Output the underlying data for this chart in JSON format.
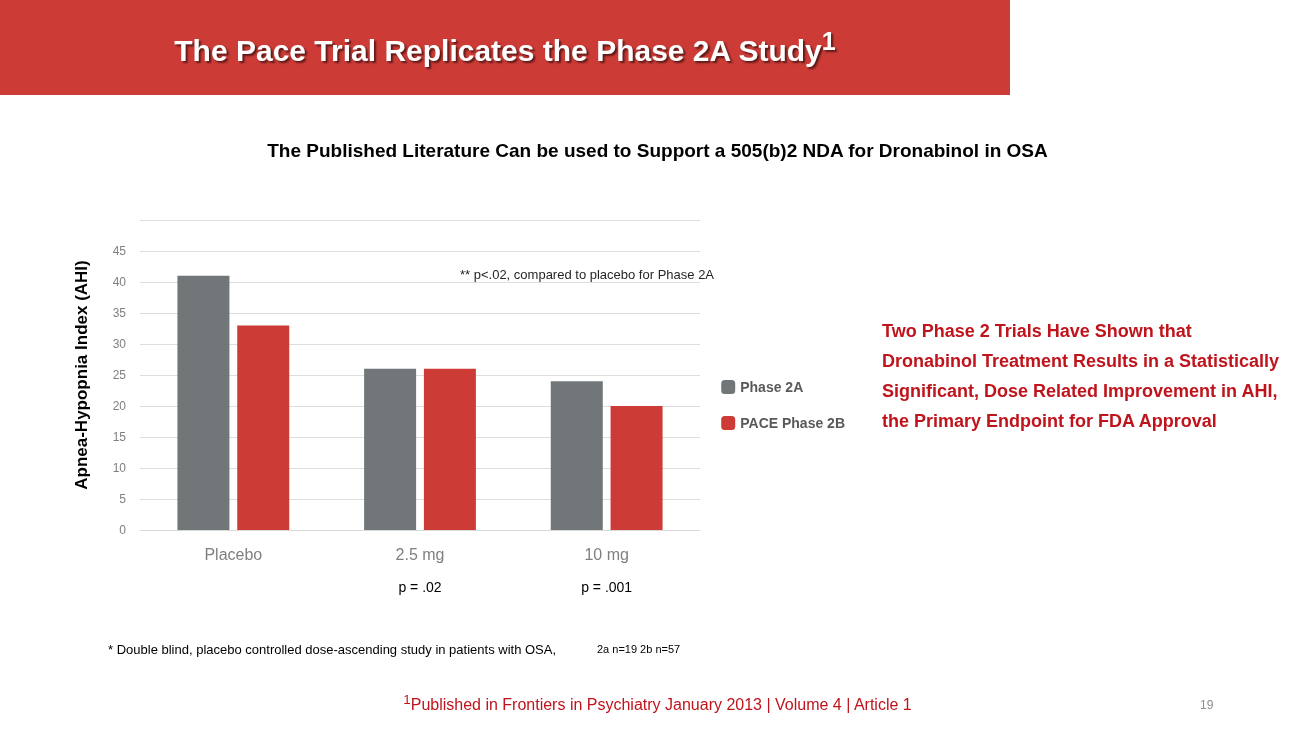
{
  "chart_data": {
    "type": "bar",
    "title": "The Pace Trial Replicates the Phase 2A Study$^{1}$",
    "subtitle": "The Published Literature Can be used to Support a 505(b)2 NDA for Dronabinol in OSA",
    "ylabel": "Apnea-Hypopnia Index (AHI)",
    "categories": [
      "Placebo",
      "2.5 mg",
      "10 mg"
    ],
    "series": [
      {
        "name": "Phase 2A",
        "color": "#717679",
        "values": [
          41,
          26,
          24
        ]
      },
      {
        "name": "PACE Phase 2B",
        "color": "#cd3b36",
        "values": [
          33,
          26,
          20
        ]
      }
    ],
    "ylim": [
      0,
      50
    ],
    "yticks": [
      0,
      5,
      10,
      15,
      20,
      25,
      30,
      35,
      40,
      45,
      {
        "value": 50,
        "label": null
      }
    ],
    "grid": "y",
    "legend": "right",
    "annotations": [
      "** p<.02, compared to placebo for Phase 2A",
      "p = .02",
      "p = .001",
      "Two Phase 2 Trials Have Shown that Dronabinol Treatment Results in a Statistically Significant, Dose Related Improvement in AHI, the Primary Endpoint for FDA Approval",
      "* Double blind, placebo controlled dose-ascending study in patients with OSA,",
      "2a n=19 2b n=57",
      "$^{1}$Published in Frontiers in Psychiatry January 2013 | Volume 4 | Article 1",
      "19"
    ]
  }
}
